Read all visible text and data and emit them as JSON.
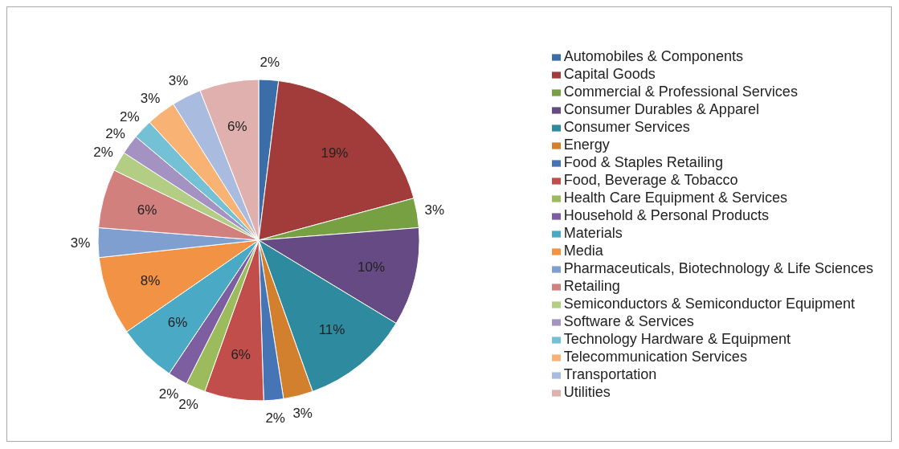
{
  "chart_data": {
    "type": "pie",
    "categories": [
      "Automobiles & Components",
      "Capital Goods",
      "Commercial & Professional Services",
      "Consumer Durables & Apparel",
      "Consumer Services",
      "Energy",
      "Food & Staples Retailing",
      "Food, Beverage & Tobacco",
      "Health Care Equipment & Services",
      "Household & Personal Products",
      "Materials",
      "Media",
      "Pharmaceuticals, Biotechnology & Life Sciences",
      "Retailing",
      "Semiconductors & Semiconductor Equipment",
      "Software & Services",
      "Technology Hardware & Equipment",
      "Telecommunication Services",
      "Transportation",
      "Utilities"
    ],
    "values": [
      2,
      19,
      3,
      10,
      11,
      3,
      2,
      6,
      2,
      2,
      6,
      8,
      3,
      6,
      2,
      2,
      2,
      3,
      3,
      6
    ],
    "value_labels": [
      "2%",
      "19%",
      "3%",
      "10%",
      "11%",
      "3%",
      "2%",
      "6%",
      "2%",
      "2%",
      "6%",
      "8%",
      "3%",
      "6%",
      "2%",
      "2%",
      "2%",
      "3%",
      "3%",
      "6%"
    ],
    "colors": [
      "#3b6ea8",
      "#a23c3a",
      "#77a042",
      "#654a84",
      "#2e8a9e",
      "#d2802d",
      "#4575b5",
      "#c24e4b",
      "#9cbb5c",
      "#7d5ea0",
      "#4aaac6",
      "#f29244",
      "#809fd1",
      "#d2807e",
      "#b3cd85",
      "#a493c2",
      "#74c0d5",
      "#f8b274",
      "#a9bce0",
      "#e0b0ae"
    ],
    "legend": "right"
  }
}
